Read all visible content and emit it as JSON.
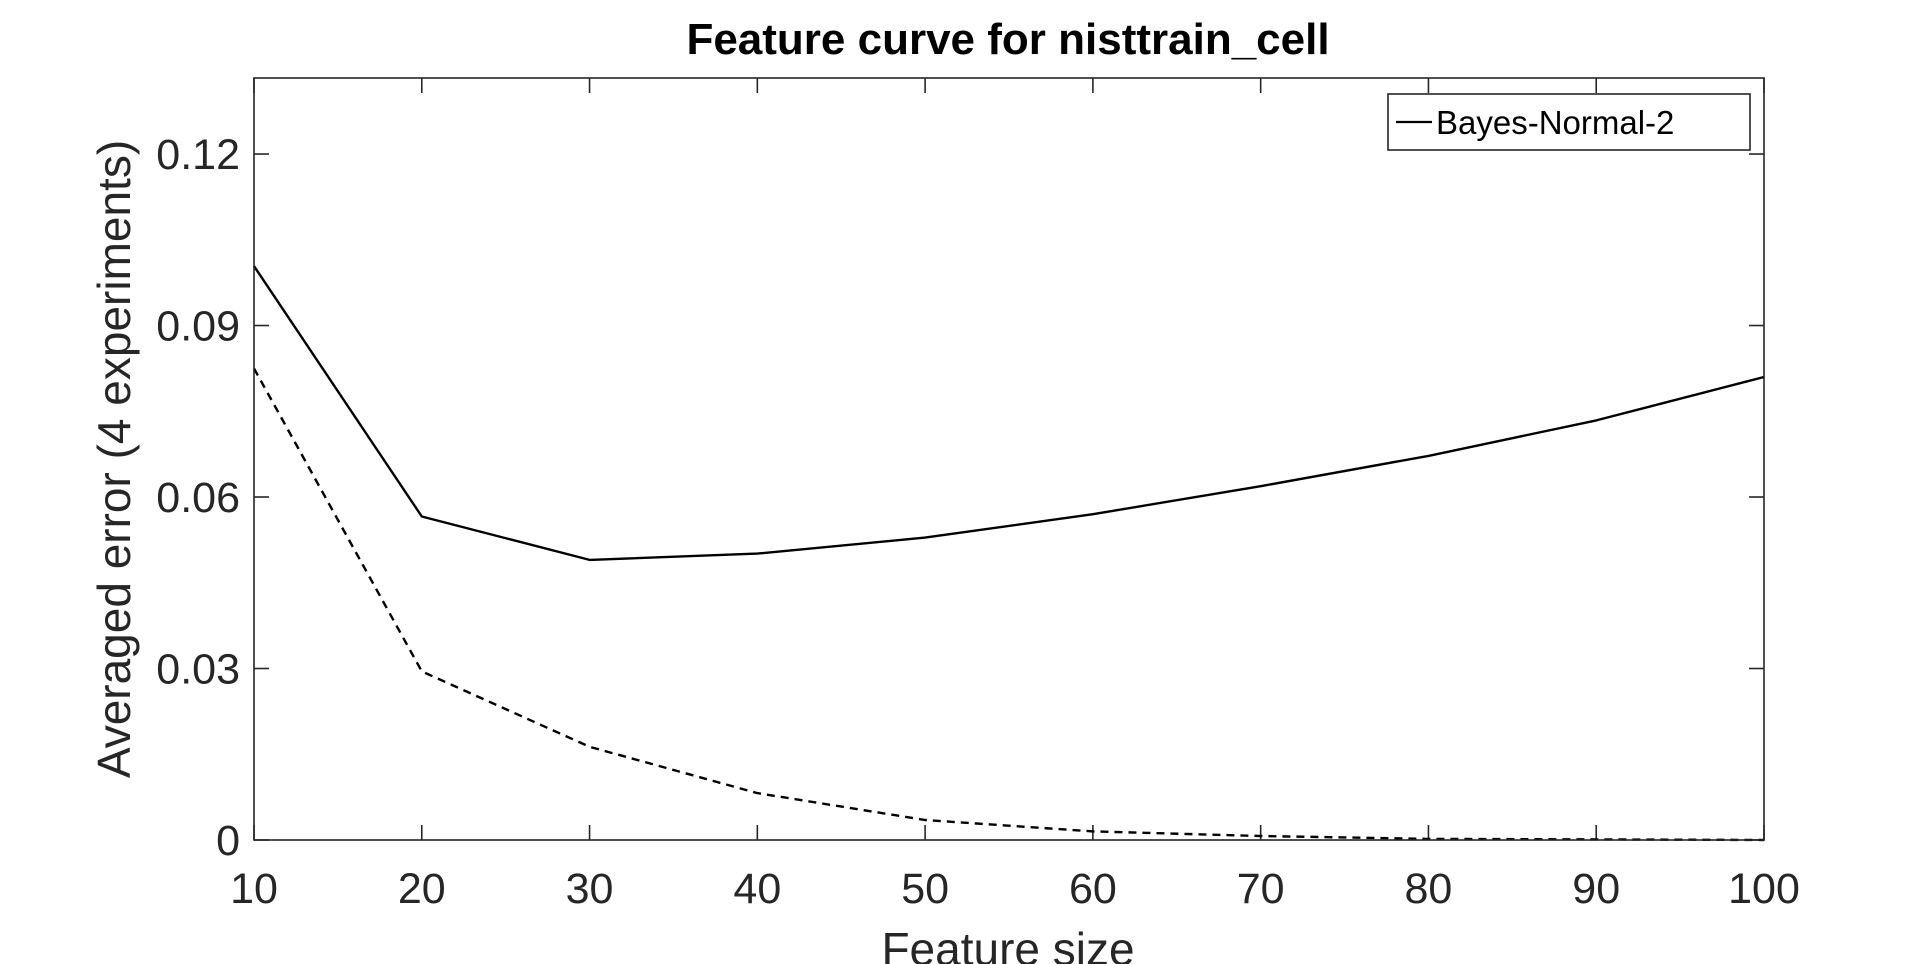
{
  "chart_data": {
    "type": "line",
    "title": "Feature curve for nisttrain_cell",
    "xlabel": "Feature size",
    "ylabel": "Averaged error (4 experiments)",
    "xlim": [
      10,
      100
    ],
    "ylim": [
      0,
      0.1333
    ],
    "x": [
      10,
      20,
      30,
      40,
      50,
      60,
      70,
      80,
      90,
      100
    ],
    "xticks": [
      "10",
      "20",
      "30",
      "40",
      "50",
      "60",
      "70",
      "80",
      "90",
      "100"
    ],
    "yticks": [
      {
        "value": 0,
        "label": "0"
      },
      {
        "value": 0.03,
        "label": "0.03"
      },
      {
        "value": 0.06,
        "label": "0.06"
      },
      {
        "value": 0.09,
        "label": "0.09"
      },
      {
        "value": 0.12,
        "label": "0.12"
      }
    ],
    "grid": false,
    "legend_position": "top-right",
    "series": [
      {
        "name": "Bayes-Normal-2",
        "style": "solid",
        "color": "#000000",
        "in_legend": true,
        "values": [
          0.1004,
          0.0566,
          0.049,
          0.0501,
          0.0529,
          0.057,
          0.0619,
          0.0672,
          0.0734,
          0.081
        ]
      },
      {
        "style": "dashed",
        "color": "#000000",
        "in_legend": false,
        "values": [
          0.0825,
          0.0295,
          0.0163,
          0.0082,
          0.0035,
          0.0015,
          0.0007,
          0.0002,
          0.0001,
          0.0
        ]
      }
    ]
  }
}
